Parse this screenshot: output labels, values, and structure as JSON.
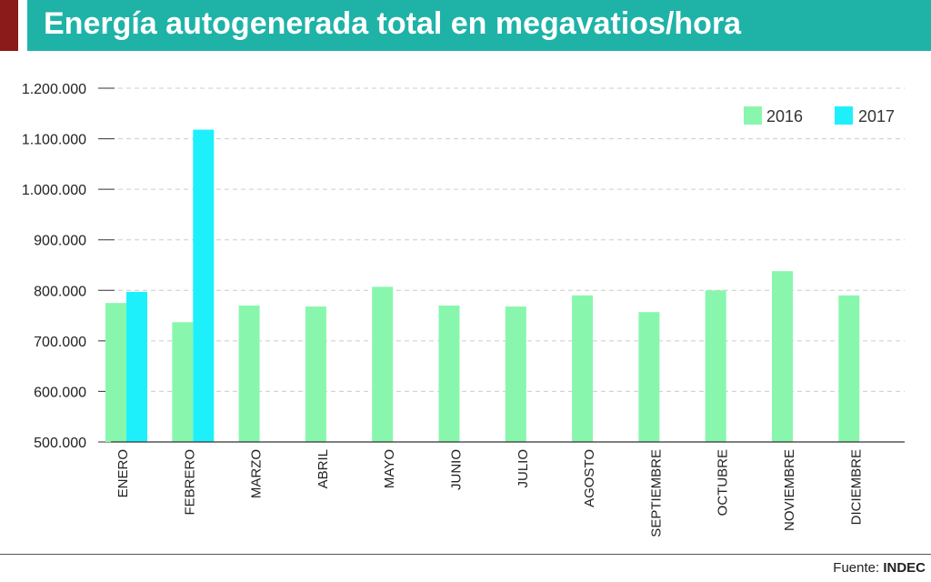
{
  "header": {
    "title": "Energía autogenerada total en megavatios/hora"
  },
  "footer": {
    "source_label": "Fuente:",
    "source_name": "INDEC"
  },
  "colors": {
    "series_2016": "#88f7ad",
    "series_2017": "#1ef0fb",
    "title_banner": "#1fb3a8",
    "accent": "#8b1a1a",
    "grid": "#cccccc"
  },
  "chart_data": {
    "type": "bar",
    "title": "Energía autogenerada total en megavatios/hora",
    "xlabel": "",
    "ylabel": "",
    "ylim": [
      500000,
      1200000
    ],
    "yticks": [
      500000,
      600000,
      700000,
      800000,
      900000,
      1000000,
      1100000,
      1200000
    ],
    "ytick_labels": [
      "500.000",
      "600.000",
      "700.000",
      "800.000",
      "900.000",
      "1.000.000",
      "1.100.000",
      "1.200.000"
    ],
    "grid": true,
    "legend_position": "top-right",
    "categories": [
      "ENERO",
      "FEBRERO",
      "MARZO",
      "ABRIL",
      "MAYO",
      "JUNIO",
      "JULIO",
      "AGOSTO",
      "SEPTIEMBRE",
      "OCTUBRE",
      "NOVIEMBRE",
      "DICIEMBRE"
    ],
    "series": [
      {
        "name": "2016",
        "values": [
          775000,
          737000,
          770000,
          768000,
          807000,
          770000,
          768000,
          790000,
          757000,
          800000,
          838000,
          790000
        ]
      },
      {
        "name": "2017",
        "values": [
          797000,
          1118000,
          null,
          null,
          null,
          null,
          null,
          null,
          null,
          null,
          null,
          null
        ]
      }
    ]
  }
}
